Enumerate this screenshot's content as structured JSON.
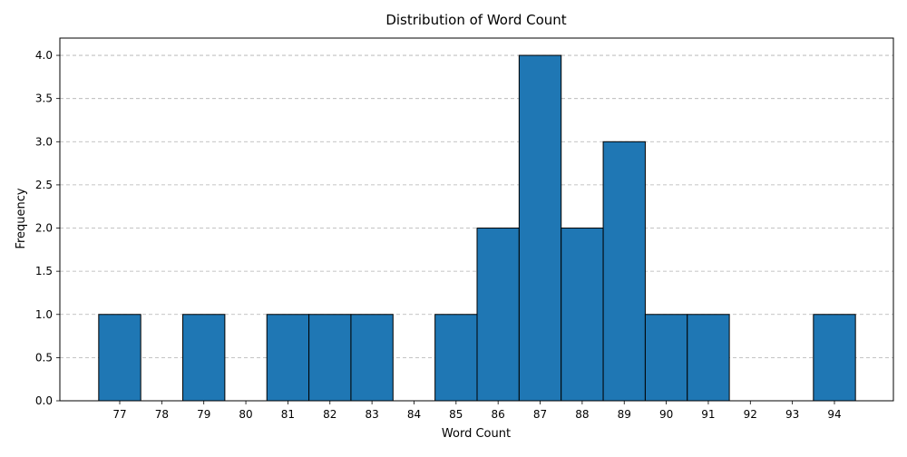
{
  "chart_data": {
    "type": "bar",
    "title": "Distribution of Word Count",
    "xlabel": "Word Count",
    "ylabel": "Frequency",
    "categories": [
      "77",
      "78",
      "79",
      "80",
      "81",
      "82",
      "83",
      "84",
      "85",
      "86",
      "87",
      "88",
      "89",
      "90",
      "91",
      "92",
      "93",
      "94"
    ],
    "values": [
      1,
      0,
      1,
      0,
      1,
      1,
      1,
      0,
      1,
      2,
      4,
      2,
      3,
      1,
      1,
      0,
      0,
      1
    ],
    "ylim": [
      0,
      4.2
    ],
    "yticks": [
      "0.0",
      "0.5",
      "1.0",
      "1.5",
      "2.0",
      "2.5",
      "3.0",
      "3.5",
      "4.0"
    ],
    "grid": "y-dashed",
    "bar_color": "#1f77b4",
    "edge_color": "#000000"
  }
}
